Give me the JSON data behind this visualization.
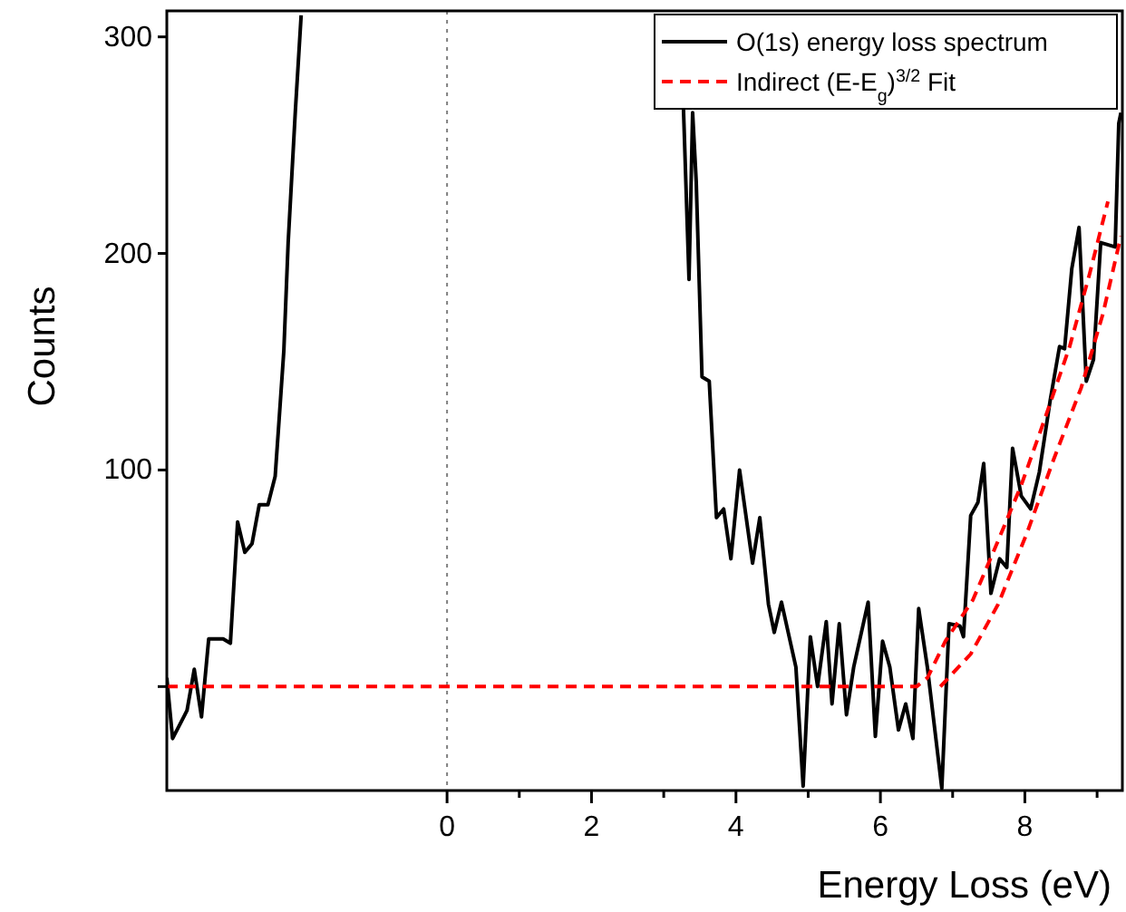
{
  "chart_data": {
    "type": "line",
    "xlabel": "Energy Loss (eV)",
    "ylabel": "Counts",
    "xlim": [
      -3.88,
      9.35
    ],
    "ylim": [
      -48,
      312
    ],
    "xticks": [
      0,
      {
        "value": 1,
        "label": null
      },
      2,
      {
        "value": 3,
        "label": null
      },
      4,
      {
        "value": 5,
        "label": null
      },
      6,
      {
        "value": 7,
        "label": null
      },
      8,
      {
        "value": 9,
        "label": null
      }
    ],
    "yticks": [
      {
        "value": 0,
        "label": null
      },
      100,
      200,
      300
    ],
    "legend": "top right",
    "ref_lines": [
      {
        "axis": "x",
        "value": 0,
        "color": "#808080",
        "line_style": "dotted"
      }
    ],
    "series": [
      {
        "name": "O(1s) energy loss spectrum",
        "color": "#000000",
        "line_style": "solid",
        "x": [
          -3.88,
          -3.8,
          -3.63,
          -3.6,
          -3.5,
          -3.4,
          -3.3,
          -3.1,
          -3.0,
          -2.9,
          -2.8,
          -2.7,
          -2.6,
          -2.48,
          -2.38,
          -2.33,
          -2.26,
          -2.2,
          -2.1,
          -2.02,
          0.5,
          3.23,
          3.28,
          3.35,
          3.4,
          3.45,
          3.53,
          3.63,
          3.73,
          3.83,
          3.93,
          4.05,
          4.23,
          4.33,
          4.45,
          4.53,
          4.63,
          4.83,
          4.93,
          5.03,
          5.13,
          5.25,
          5.33,
          5.43,
          5.53,
          5.63,
          5.83,
          5.93,
          6.03,
          6.13,
          6.25,
          6.35,
          6.45,
          6.53,
          6.65,
          6.85,
          6.95,
          7.1,
          7.15,
          7.25,
          7.35,
          7.43,
          7.53,
          7.65,
          7.75,
          7.83,
          7.95,
          8.08,
          8.2,
          8.35,
          8.48,
          8.55,
          8.65,
          8.75,
          8.85,
          8.95,
          9.05,
          9.25,
          9.3,
          9.33
        ],
        "values": [
          4,
          -24,
          -13,
          -11,
          8,
          -14,
          22,
          22,
          20,
          76,
          62,
          66,
          84,
          84,
          97,
          121,
          155,
          205,
          266,
          310,
          null,
          310,
          260,
          188,
          265,
          233,
          143,
          141,
          78,
          82,
          59,
          100,
          57,
          78,
          38,
          25,
          39,
          9,
          -46,
          23,
          0,
          30,
          -8,
          29,
          -13,
          9,
          39,
          -23,
          21,
          9,
          -20,
          -8,
          -24,
          36,
          9,
          -47,
          29,
          28,
          23,
          79,
          85,
          103,
          43,
          59,
          55,
          110,
          88,
          82,
          99,
          132,
          157,
          156,
          193,
          212,
          141,
          151,
          205,
          203,
          260,
          265
        ]
      },
      {
        "name": "Indirect (E-E$_{g}$)$^{3/2}$ Fit",
        "color": "#ff0000",
        "line_style": "dashed",
        "x": [
          -3.88,
          6.5,
          6.65,
          6.9,
          7.28,
          7.6,
          7.95,
          8.28,
          8.62,
          8.9,
          9.15
        ],
        "values": [
          0,
          0,
          4,
          21,
          40,
          65,
          93,
          124,
          157,
          191,
          224
        ]
      },
      {
        "color": "#ff0000",
        "line_style": "dashed",
        "x": [
          6.83,
          7.25,
          7.63,
          8.03,
          8.4,
          8.78,
          9.08,
          9.33
        ],
        "values": [
          0,
          15,
          38,
          71,
          105,
          138,
          172,
          208
        ]
      }
    ]
  }
}
